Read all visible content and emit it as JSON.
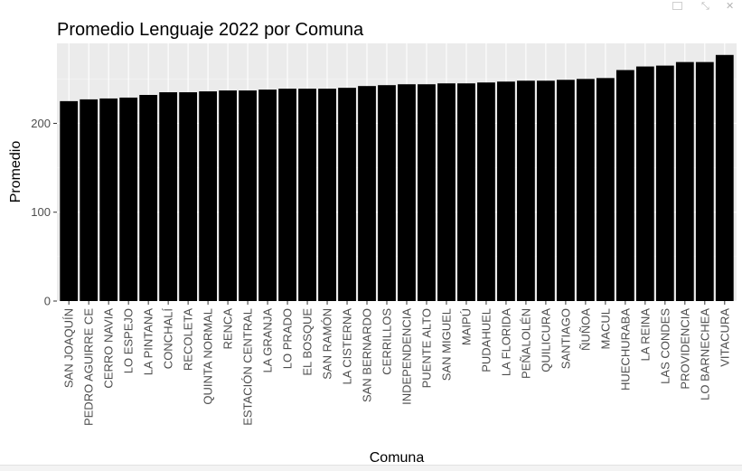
{
  "window_controls": {
    "popout_icon": "popout-icon",
    "minimize_symbol": "⤡",
    "close_symbol": "✕"
  },
  "colors": {
    "panel_background": "#ebebeb",
    "grid_major": "#ffffff",
    "bar_fill": "#000000",
    "text": "#000000",
    "tick_text": "#4d4d4d"
  },
  "chart_data": {
    "type": "bar",
    "title": "Promedio Lenguaje 2022 por Comuna",
    "xlabel": "Comuna",
    "ylabel": "Promedio",
    "ylim": [
      0,
      290
    ],
    "yticks": [
      0,
      100,
      200
    ],
    "grid": true,
    "categories": [
      "SAN JOAQUÍN",
      "PEDRO AGUIRRE CE",
      "CERRO NAVIA",
      "LO ESPEJO",
      "LA PINTANA",
      "CONCHALÍ",
      "RECOLETA",
      "QUINTA NORMAL",
      "RENCA",
      "ESTACIÓN CENTRAL",
      "LA GRANJA",
      "LO PRADO",
      "EL BOSQUE",
      "SAN RAMÓN",
      "LA CISTERNA",
      "SAN BERNARDO",
      "CERRILLOS",
      "INDEPENDENCIA",
      "PUENTE ALTO",
      "SAN MIGUEL",
      "MAIPÚ",
      "PUDAHUEL",
      "LA FLORIDA",
      "PEÑALOLÉN",
      "QUILICURA",
      "SANTIAGO",
      "ÑUÑOA",
      "MACUL",
      "HUECHURABA",
      "LA REINA",
      "LAS CONDES",
      "PROVIDENCIA",
      "LO BARNECHEA",
      "VITACURA"
    ],
    "values": [
      225,
      227,
      228,
      229,
      232,
      235,
      235,
      236,
      237,
      237,
      238,
      239,
      239,
      239,
      240,
      242,
      243,
      244,
      244,
      245,
      245,
      246,
      247,
      248,
      248,
      249,
      250,
      251,
      260,
      264,
      265,
      269,
      269,
      277
    ]
  }
}
